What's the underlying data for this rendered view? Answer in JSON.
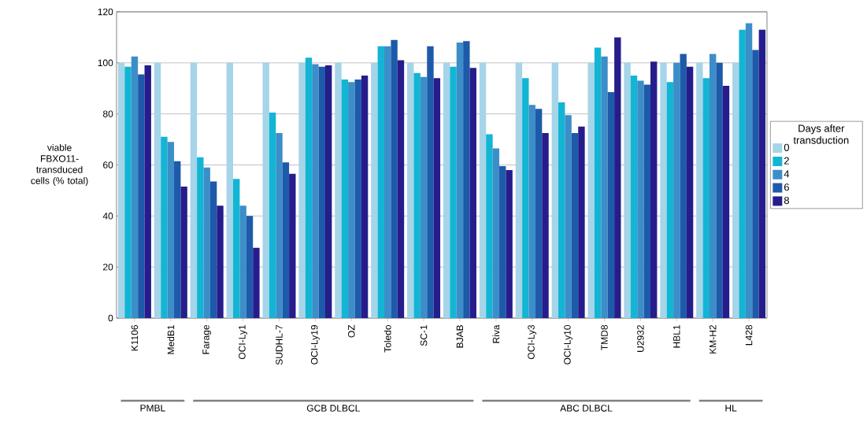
{
  "chart_data": {
    "type": "bar",
    "ylabel": "viable FBXO11-transduced cells (% total)",
    "legend_title": "Days after transduction",
    "categories": [
      "K1106",
      "MedB1",
      "Farage",
      "OCI-Ly1",
      "SUDHL-7",
      "OCI-Ly19",
      "OZ",
      "Toledo",
      "SC-1",
      "BJAB",
      "Riva",
      "OCI-Ly3",
      "OCI-Ly10",
      "TMD8",
      "U2932",
      "HBL1",
      "KM-H2",
      "L428"
    ],
    "series": [
      {
        "name": "0",
        "color": "#a6d4e8",
        "values": [
          100,
          100,
          100,
          100,
          100,
          100,
          100,
          100,
          100,
          100,
          100,
          100,
          100,
          100,
          100,
          100,
          100,
          100
        ]
      },
      {
        "name": "2",
        "color": "#13b5d4",
        "values": [
          98.5,
          71,
          63,
          54.5,
          80.5,
          102,
          93.5,
          106.5,
          96,
          98.5,
          72,
          94,
          84.5,
          106,
          95,
          92.5,
          94,
          113
        ]
      },
      {
        "name": "4",
        "color": "#3c8ec8",
        "values": [
          102.5,
          69,
          59,
          44,
          72.5,
          99.5,
          92.5,
          106.5,
          94.5,
          108,
          66.5,
          83.5,
          79.5,
          102.5,
          93,
          100,
          103.5,
          115.5
        ]
      },
      {
        "name": "6",
        "color": "#1d5aaa",
        "values": [
          95.5,
          61.5,
          53.5,
          40,
          61,
          98.5,
          93.5,
          109,
          106.5,
          108.5,
          59.5,
          82,
          72.5,
          88.5,
          91.5,
          103.5,
          100,
          105
        ]
      },
      {
        "name": "8",
        "color": "#261c8c",
        "values": [
          99,
          51.5,
          44,
          27.5,
          56.5,
          99,
          95,
          101,
          94,
          98,
          58,
          72.5,
          75,
          110,
          100.5,
          98.5,
          91,
          113
        ]
      }
    ],
    "ylim": [
      0,
      120
    ],
    "yticks": [
      0,
      20,
      40,
      60,
      80,
      100,
      120
    ],
    "grid": "y",
    "legend": "right",
    "annotations": [
      "PMBL",
      "GCB DLBCL",
      "ABC DLBCL",
      "HL"
    ]
  }
}
